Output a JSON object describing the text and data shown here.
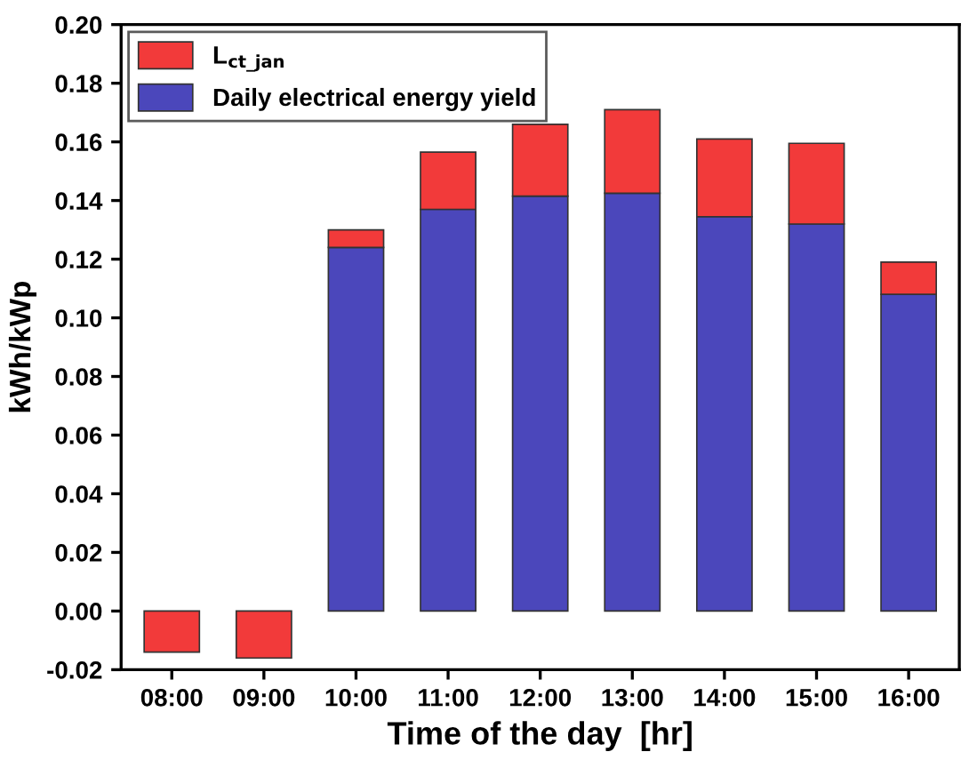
{
  "chart_data": {
    "type": "bar",
    "stacked": true,
    "xlabel": "Time of the day  [hr]",
    "ylabel": "kWh/kWp",
    "categories": [
      "08:00",
      "09:00",
      "10:00",
      "11:00",
      "12:00",
      "13:00",
      "14:00",
      "15:00",
      "16:00"
    ],
    "series": [
      {
        "name": "Daily electrical energy yield",
        "color": "#4b47bb",
        "values": [
          null,
          null,
          0.124,
          0.137,
          0.1415,
          0.1425,
          0.1345,
          0.132,
          0.108
        ]
      },
      {
        "name": "L$_{ct_jan}$",
        "color": "#f23a3a",
        "values": [
          -0.014,
          -0.016,
          0.006,
          0.0195,
          0.0245,
          0.0285,
          0.0265,
          0.0275,
          0.011
        ]
      }
    ],
    "ylim": [
      -0.02,
      0.2
    ],
    "yticks": [
      {
        "value": -0.02,
        "label": "-0.02"
      },
      {
        "value": 0.0,
        "label": "0.00"
      },
      {
        "value": 0.02,
        "label": "0.02"
      },
      {
        "value": 0.04,
        "label": "0.04"
      },
      {
        "value": 0.06,
        "label": "0.06"
      },
      {
        "value": 0.08,
        "label": "0.08"
      },
      {
        "value": 0.1,
        "label": "0.10"
      },
      {
        "value": 0.12,
        "label": "0.12"
      },
      {
        "value": 0.14,
        "label": "0.14"
      },
      {
        "value": 0.16,
        "label": "0.16"
      },
      {
        "value": 0.18,
        "label": "0.18"
      },
      {
        "value": 0.2,
        "label": "0.20"
      }
    ],
    "grid": false,
    "legend": "top left"
  }
}
